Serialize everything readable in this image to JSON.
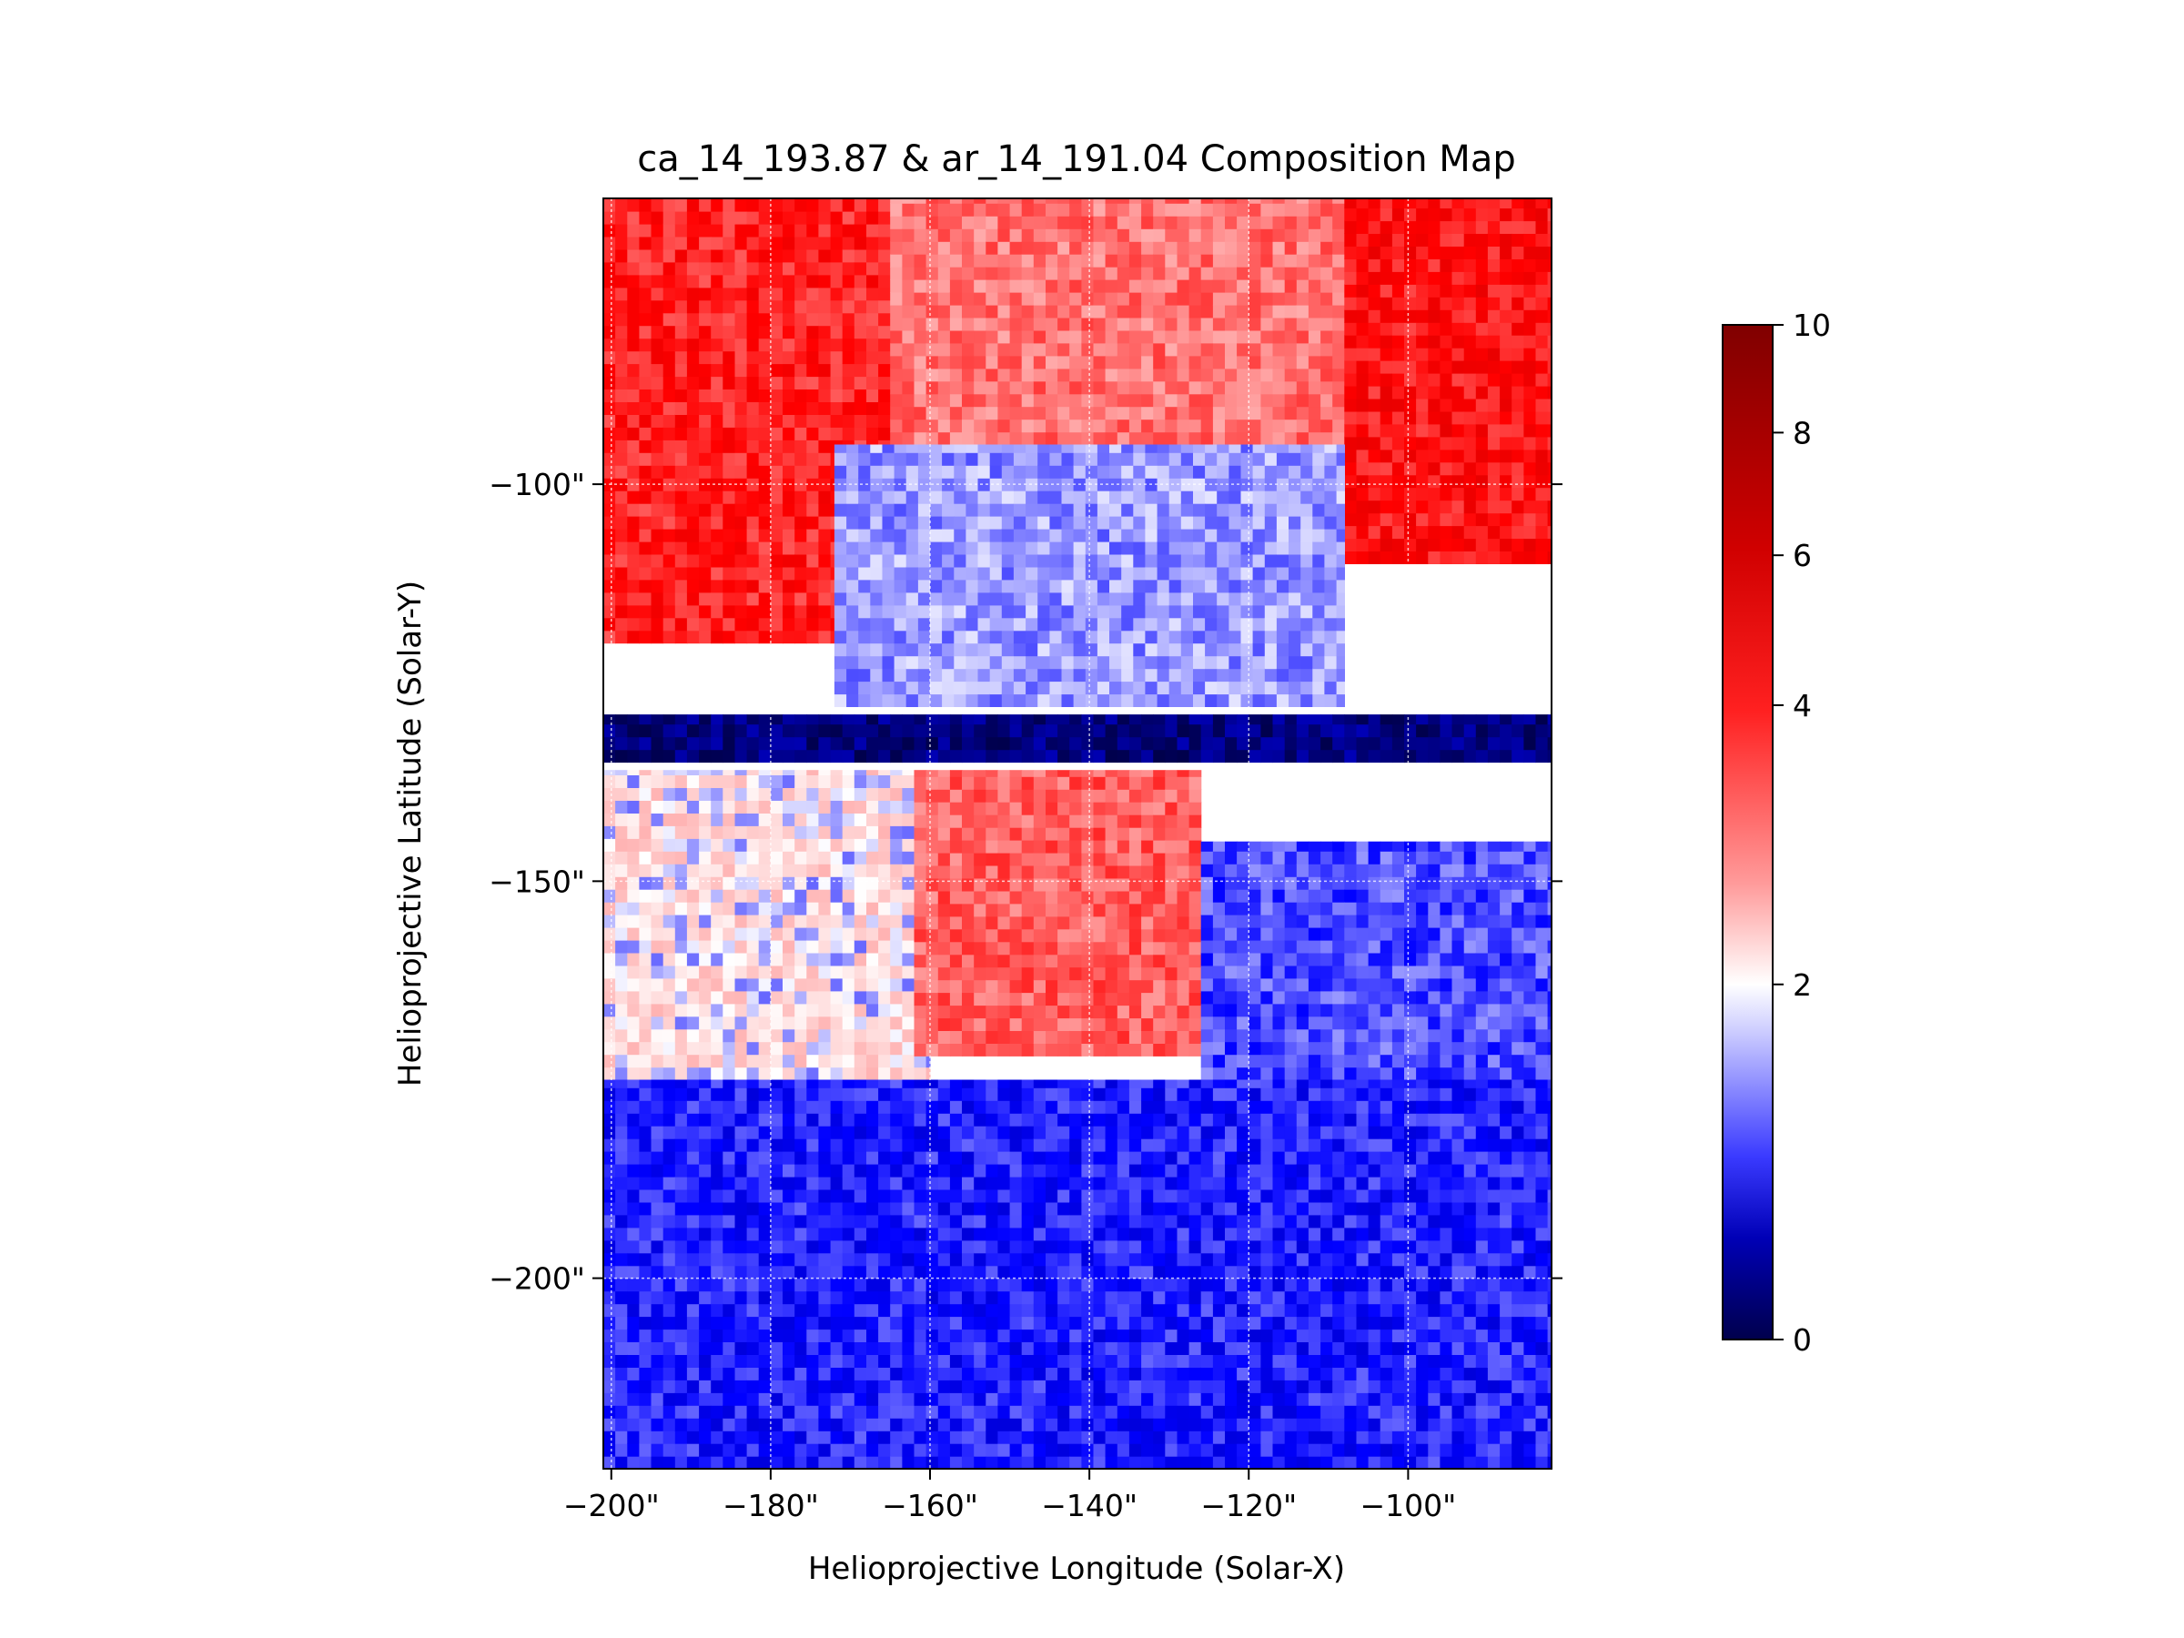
{
  "chart_data": {
    "type": "heatmap",
    "title": "ca_14_193.87 & ar_14_191.04 Composition Map",
    "xlabel": "Helioprojective Longitude (Solar-X)",
    "ylabel": "Helioprojective Latitude (Solar-Y)",
    "x_range": [
      -201,
      -82
    ],
    "y_range": [
      -224,
      -64
    ],
    "x_ticks": [
      {
        "value": -200,
        "label": "−200\""
      },
      {
        "value": -180,
        "label": "−180\""
      },
      {
        "value": -160,
        "label": "−160\""
      },
      {
        "value": -140,
        "label": "−140\""
      },
      {
        "value": -120,
        "label": "−120\""
      },
      {
        "value": -100,
        "label": "−100\""
      }
    ],
    "y_ticks": [
      {
        "value": -100,
        "label": "−100\""
      },
      {
        "value": -150,
        "label": "−150\""
      },
      {
        "value": -200,
        "label": "−200\""
      }
    ],
    "grid": true,
    "colormap": "seismic",
    "colorbar": {
      "min": 0,
      "max": 10,
      "center": 2,
      "ticks": [
        {
          "value": 0,
          "label": "0"
        },
        {
          "value": 2,
          "label": "2"
        },
        {
          "value": 4,
          "label": "4"
        },
        {
          "value": 6,
          "label": "6"
        },
        {
          "value": 8,
          "label": "8"
        },
        {
          "value": 10,
          "label": "10"
        }
      ]
    },
    "regions": [
      {
        "name": "upper-left",
        "x": [
          -201,
          -165
        ],
        "y": [
          -120,
          -64
        ],
        "value": 5.5
      },
      {
        "name": "upper-center",
        "x": [
          -165,
          -108
        ],
        "y": [
          -95,
          -64
        ],
        "value": 4.2
      },
      {
        "name": "upper-right",
        "x": [
          -108,
          -82
        ],
        "y": [
          -110,
          -64
        ],
        "value": 5.8
      },
      {
        "name": "center-band-above-gap",
        "x": [
          -172,
          -108
        ],
        "y": [
          -128,
          -95
        ],
        "value": 1.6
      },
      {
        "name": "saturated-row",
        "x": [
          -201,
          -82
        ],
        "y": [
          -135,
          -129
        ],
        "value": 0.3
      },
      {
        "name": "lower-left-mixed",
        "x": [
          -201,
          -160
        ],
        "y": [
          -175,
          -136
        ],
        "value": 2.3
      },
      {
        "name": "lower-center-red",
        "x": [
          -162,
          -126
        ],
        "y": [
          -172,
          -136
        ],
        "value": 4.5
      },
      {
        "name": "lower-right-blue",
        "x": [
          -126,
          -82
        ],
        "y": [
          -175,
          -145
        ],
        "value": 1.3
      },
      {
        "name": "bottom",
        "x": [
          -201,
          -82
        ],
        "y": [
          -224,
          -175
        ],
        "value": 1.1
      }
    ]
  }
}
